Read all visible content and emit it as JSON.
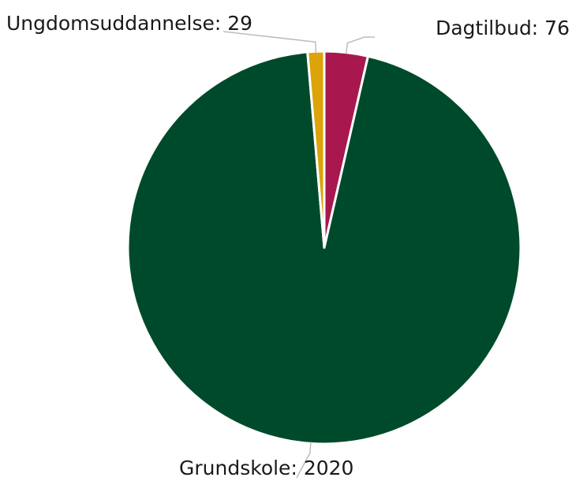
{
  "chart_data": {
    "type": "pie",
    "title": "",
    "categories": [
      "Dagtilbud",
      "Grundskole",
      "Ungdomsuddannelse"
    ],
    "values": [
      76,
      2020,
      29
    ],
    "labels": [
      "Dagtilbud: 76",
      "Grundskole: 2020",
      "Ungdomsuddannelse: 29"
    ],
    "colors": [
      "#a8174e",
      "#004a2c",
      "#dca40a"
    ],
    "start_angle": "top",
    "direction": "clockwise",
    "legend": "none"
  }
}
